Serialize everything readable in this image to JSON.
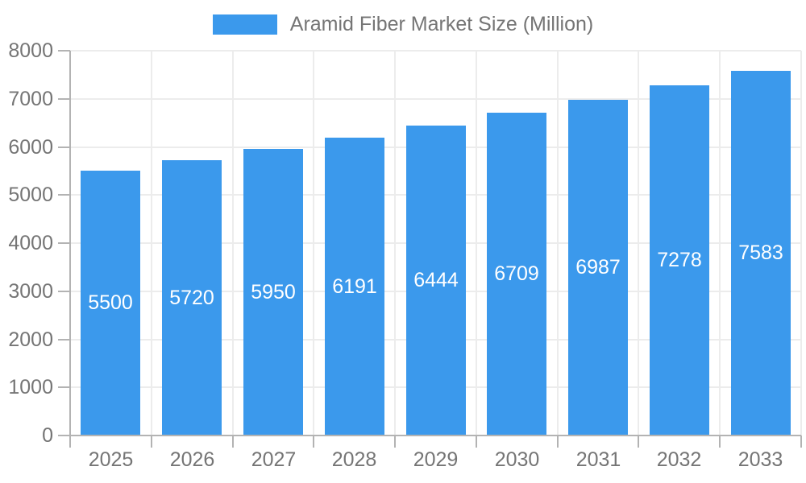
{
  "chart_data": {
    "type": "bar",
    "title": "Aramid Fiber Market Size (Million)",
    "categories": [
      "2025",
      "2026",
      "2027",
      "2028",
      "2029",
      "2030",
      "2031",
      "2032",
      "2033"
    ],
    "series": [
      {
        "name": "Aramid Fiber Market Size (Million)",
        "values": [
          5500,
          5720,
          5950,
          6191,
          6444,
          6709,
          6987,
          7278,
          7583
        ]
      }
    ],
    "xlabel": "",
    "ylabel": "",
    "ylim": [
      0,
      8000
    ],
    "yticks": [
      0,
      1000,
      2000,
      3000,
      4000,
      5000,
      6000,
      7000,
      8000
    ],
    "grid": true,
    "legend_position": "top-center",
    "value_labels": "inside-center",
    "colors": {
      "bar": "#3B99EC",
      "value_label": "#FFFFFF",
      "axis_text": "#757575",
      "legend_text": "#757575",
      "gridline": "#ECECEC",
      "axis_line": "#B3B3B3",
      "background": "#FFFFFF"
    }
  }
}
